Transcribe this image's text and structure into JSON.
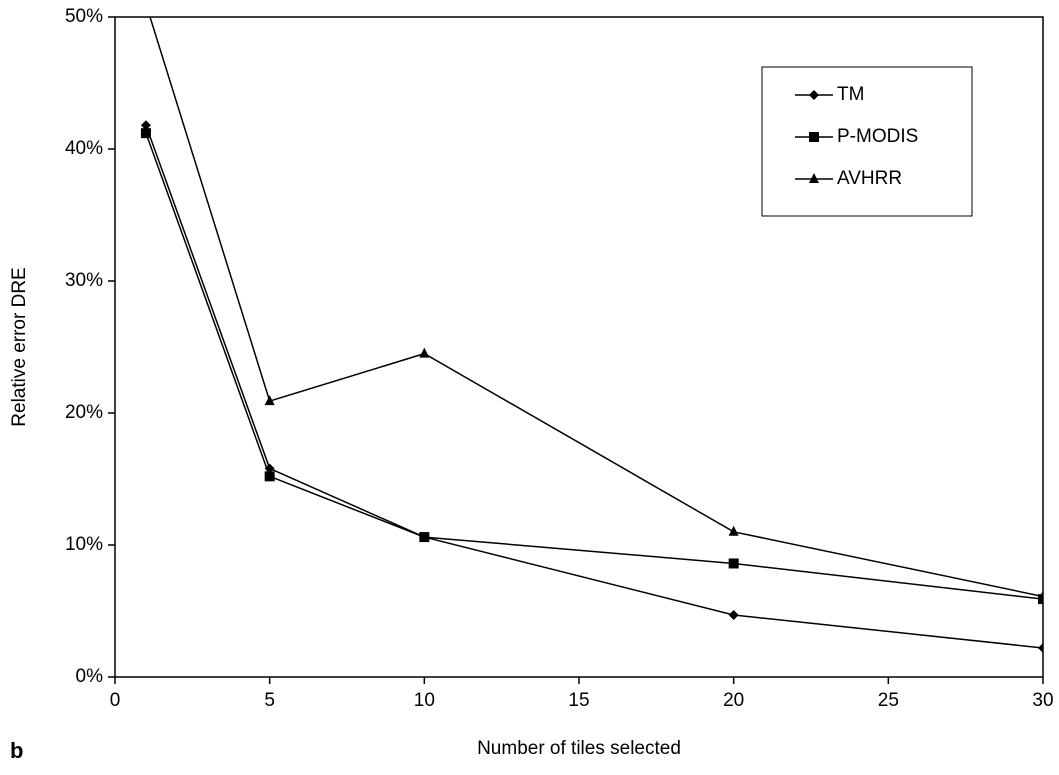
{
  "chart_data": {
    "type": "line",
    "x_label": "Number of tiles selected",
    "y_label": "Relative error DRE",
    "panel_label": "b",
    "x": [
      1,
      5,
      10,
      20,
      30
    ],
    "series": [
      {
        "name": "TM",
        "color": "#000000",
        "marker": "diamond",
        "values": [
          41.8,
          15.8,
          10.6,
          4.7,
          2.2
        ]
      },
      {
        "name": "P-MODIS",
        "color": "#000000",
        "marker": "square",
        "values": [
          41.2,
          15.2,
          10.6,
          8.6,
          5.9
        ]
      },
      {
        "name": "AVHRR",
        "color": "#000000",
        "marker": "triangle",
        "values": [
          51,
          20.9,
          24.5,
          11.0,
          6.1
        ]
      }
    ],
    "xlim": [
      0,
      30
    ],
    "xticks": [
      0,
      5,
      10,
      15,
      20,
      25,
      30
    ],
    "ylim": [
      0,
      50
    ],
    "yticks": [
      {
        "value": 0,
        "label": "0%"
      },
      {
        "value": 10,
        "label": "10%"
      },
      {
        "value": 20,
        "label": "20%"
      },
      {
        "value": 30,
        "label": "30%"
      },
      {
        "value": 40,
        "label": "40%"
      },
      {
        "value": 50,
        "label": "50%"
      }
    ],
    "legend": "upper right",
    "grid": false
  }
}
